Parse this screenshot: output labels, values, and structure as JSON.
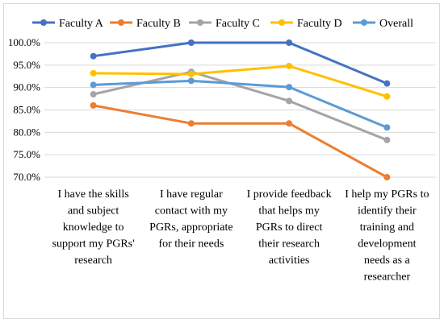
{
  "chart_data": {
    "type": "line",
    "title": "",
    "xlabel": "",
    "ylabel": "",
    "ylim": [
      70,
      100
    ],
    "y_ticks": [
      "70.0%",
      "75.0%",
      "80.0%",
      "85.0%",
      "90.0%",
      "95.0%",
      "100.0%"
    ],
    "y_tick_values": [
      70,
      75,
      80,
      85,
      90,
      95,
      100
    ],
    "categories": [
      [
        "I have the skills",
        "and subject",
        "knowledge to",
        "support my PGRs'",
        "research"
      ],
      [
        "I have regular",
        "contact with my",
        "PGRs, appropriate",
        "for their needs"
      ],
      [
        "I provide feedback",
        "that helps my",
        "PGRs to direct",
        "their research",
        "activities"
      ],
      [
        "I help my PGRs to",
        "identify their",
        "training and",
        "development",
        "needs as a",
        "researcher"
      ]
    ],
    "grid": true,
    "legend_position": "top",
    "series": [
      {
        "name": "Faculty A",
        "color": "#4472c4",
        "values": [
          97.0,
          100.0,
          100.0,
          90.9
        ]
      },
      {
        "name": "Faculty B",
        "color": "#ed7d31",
        "values": [
          86.0,
          82.0,
          82.0,
          70.0
        ]
      },
      {
        "name": "Faculty C",
        "color": "#a5a5a5",
        "values": [
          88.5,
          93.5,
          87.0,
          78.3
        ]
      },
      {
        "name": "Faculty D",
        "color": "#ffc000",
        "values": [
          93.2,
          93.0,
          94.8,
          88.0
        ]
      },
      {
        "name": "Overall",
        "color": "#5b9bd5",
        "values": [
          90.6,
          91.5,
          90.1,
          81.1
        ]
      }
    ]
  }
}
